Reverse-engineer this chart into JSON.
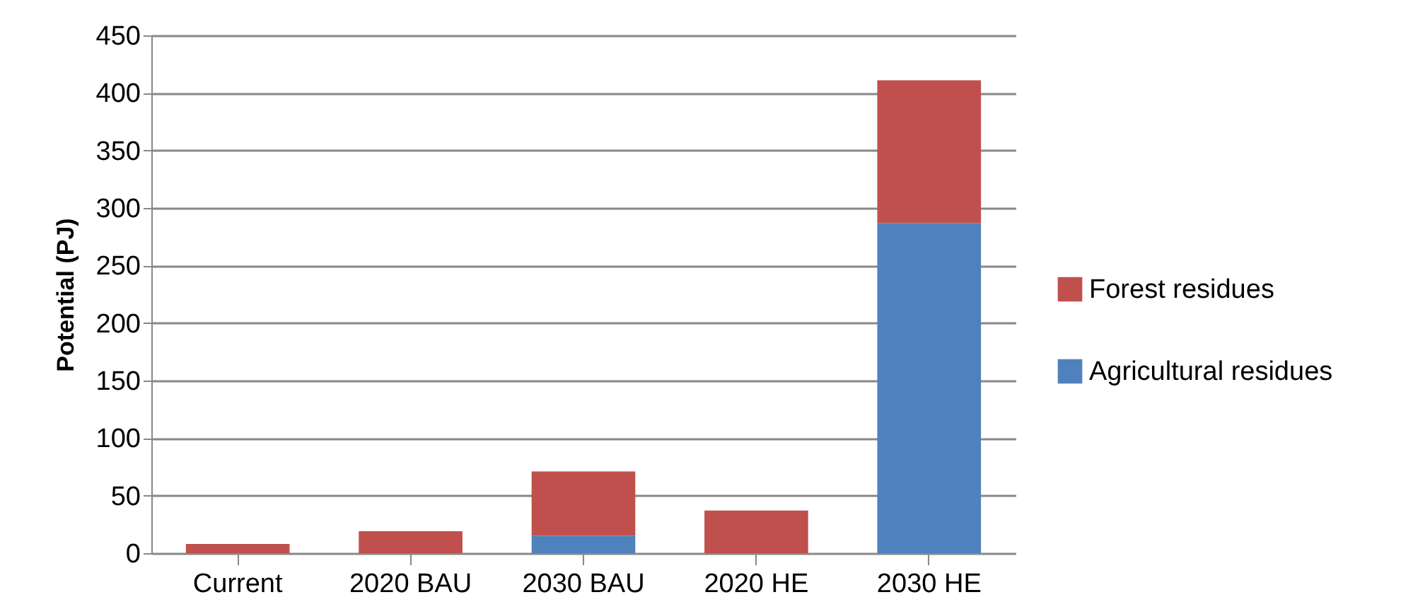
{
  "chart_data": {
    "type": "bar",
    "stacked": true,
    "ylabel": "Potential (PJ)",
    "categories": [
      "Current",
      "2020 BAU",
      "2030 BAU",
      "2020 HE",
      "2030 HE"
    ],
    "series": [
      {
        "name": "Agricultural residues",
        "color": "#4f81bd",
        "values": [
          0,
          0,
          15,
          0,
          287
        ]
      },
      {
        "name": "Forest residues",
        "color": "#c0504d",
        "values": [
          8,
          19,
          56,
          37,
          124
        ]
      }
    ],
    "ylim": [
      0,
      450
    ],
    "yticks": [
      0,
      50,
      100,
      150,
      200,
      250,
      300,
      350,
      400,
      450
    ],
    "grid": "y",
    "legend": "right"
  }
}
